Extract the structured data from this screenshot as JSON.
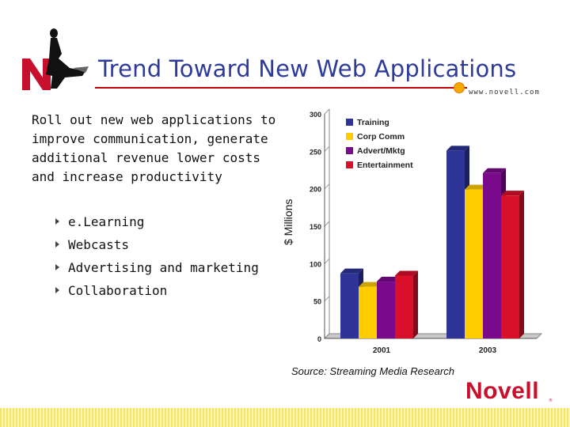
{
  "slide": {
    "title": "Trend Toward New Web Applications",
    "url": "www.novell.com",
    "intro": "Roll out new web applications to improve communication, generate additional revenue lower costs and increase productivity",
    "bullets": [
      "e.Learning",
      "Webcasts",
      "Advertising and marketing",
      "Collaboration"
    ],
    "source": "Source: Streaming Media Research",
    "brand": "Novell",
    "trademark": "®",
    "logo_letter": "N",
    "colors": {
      "title": "#2e3b9a",
      "brand": "#c8102e",
      "accent_dot": "#f7a800",
      "rule": "#c00000"
    }
  },
  "chart_data": {
    "type": "bar",
    "categories": [
      "2001",
      "2003"
    ],
    "series": [
      {
        "name": "Training",
        "values": [
          87,
          251
        ],
        "color": "#2e3596"
      },
      {
        "name": "Corp Comm",
        "values": [
          69,
          199
        ],
        "color": "#ffcc00"
      },
      {
        "name": "Advert/Mktg",
        "values": [
          76,
          221
        ],
        "color": "#7a0a8c"
      },
      {
        "name": "Entertainment",
        "values": [
          84,
          191
        ],
        "color": "#d8102a"
      }
    ],
    "ylabel": "$ Millions",
    "ylim": [
      0,
      300
    ],
    "yticks": [
      "0",
      "50",
      "100",
      "150",
      "200",
      "250",
      "300"
    ],
    "legend_position": "top-left",
    "three_d": true
  }
}
